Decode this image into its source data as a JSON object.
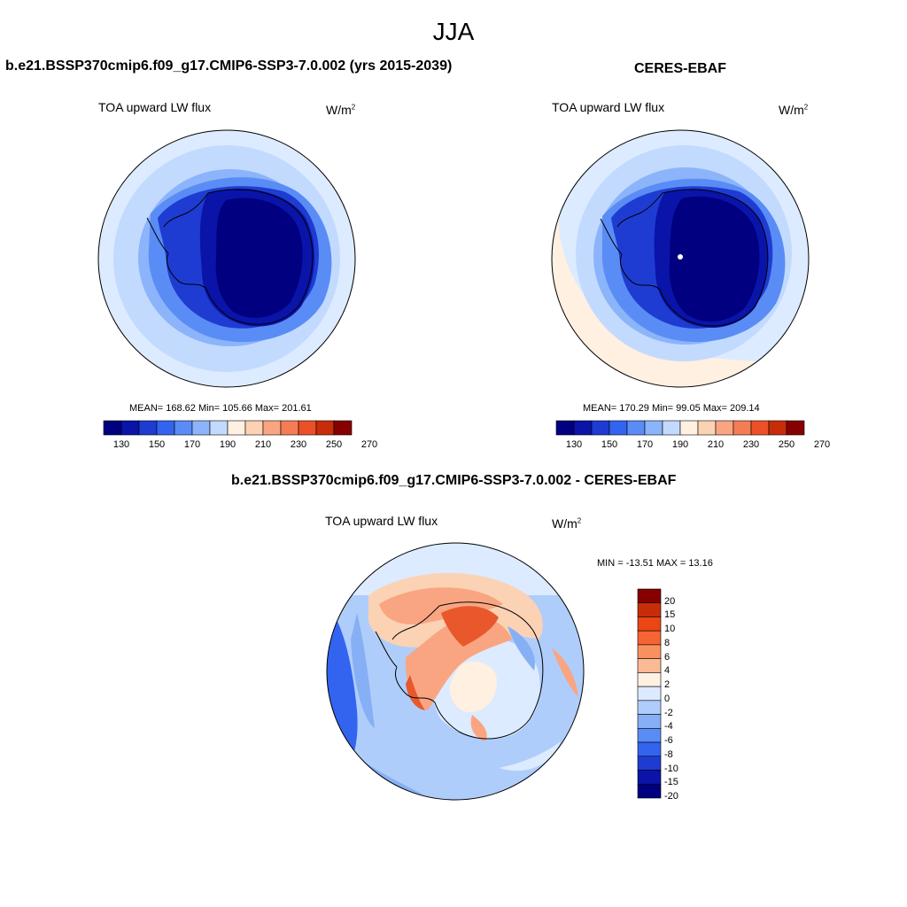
{
  "figure": {
    "season": "JJA"
  },
  "panels": [
    {
      "title": "b.e21.BSSP370cmip6.f09_g17.CMIP6-SSP3-7.0.002 (yrs 2015-2039)",
      "variable": "TOA upward LW flux",
      "units_base": "W/m",
      "units_exp": "2",
      "stats": "MEAN= 168.62  Min= 105.66  Max= 201.61"
    },
    {
      "title": "CERES-EBAF",
      "variable": "TOA upward LW flux",
      "units_base": "W/m",
      "units_exp": "2",
      "stats": "MEAN= 170.29  Min=  99.05  Max= 209.14"
    },
    {
      "title": "b.e21.BSSP370cmip6.f09_g17.CMIP6-SSP3-7.0.002 - CERES-EBAF",
      "variable": "TOA upward LW flux",
      "units_base": "W/m",
      "units_exp": "2",
      "stats": "MIN = -13.51 MAX =  13.16"
    }
  ],
  "colorbar_abs": {
    "colors": [
      "#000080",
      "#0a14a8",
      "#1e3cd2",
      "#3264f0",
      "#5a8cf5",
      "#8cb4fa",
      "#c3daff",
      "#fff0e1",
      "#fcd2b4",
      "#f9a582",
      "#f57d55",
      "#eb5028",
      "#c82d0a",
      "#870000"
    ],
    "tick_labels": [
      "130",
      "150",
      "170",
      "190",
      "210",
      "230",
      "250",
      "270"
    ]
  },
  "colorbar_diff": {
    "colors": [
      "#870000",
      "#c82d0a",
      "#eb4614",
      "#f56432",
      "#f9915f",
      "#fcb996",
      "#fff0e1",
      "#dcebff",
      "#afcdfa",
      "#87aff5",
      "#5a8cf5",
      "#3264f0",
      "#1e3cd2",
      "#0a14a8",
      "#000080"
    ],
    "tick_labels": [
      "20",
      "15",
      "10",
      "8",
      "6",
      "4",
      "2",
      "0",
      "-2",
      "-4",
      "-6",
      "-8",
      "-10",
      "-15",
      "-20"
    ]
  },
  "map_colors": {
    "ocean_far": "#dcebff",
    "ocean_mid": "#c3daff",
    "ice_edge": "#8cb4fa",
    "shelf": "#5a8cf5",
    "coast": "#1e3cd2",
    "inner": "#0a14a8",
    "plateau": "#000080",
    "warm_fringe": "#fff0e1",
    "diff_pos_strong": "#e8582c",
    "diff_pos": "#f9a582",
    "diff_pos_weak": "#fcd2b4",
    "diff_zero": "#fff0e1",
    "diff_neg_weak": "#dcebff",
    "diff_neg": "#afcdfa",
    "diff_neg_mid": "#87aff5",
    "diff_neg_strong": "#3264f0"
  }
}
